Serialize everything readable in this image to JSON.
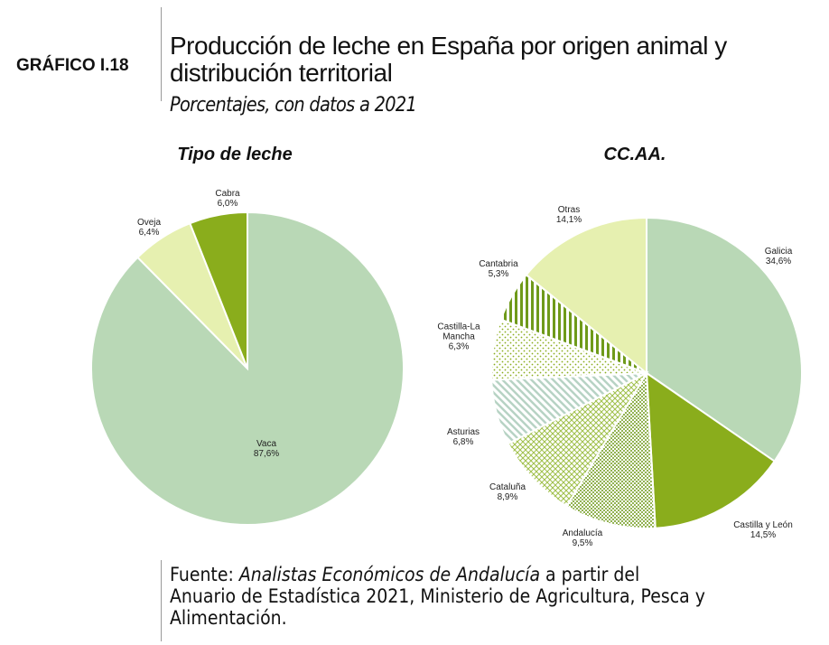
{
  "header": {
    "label": "GRÁFICO I.18",
    "title": "Producción de leche en España por origen animal y distribución territorial",
    "subtitle": "Porcentajes, con datos a 2021"
  },
  "source": {
    "lead": "Fuente:",
    "author": "Analistas Económicos de Andalucía",
    "rest": "a partir del Anuario de Estadística 2021, Ministerio de Agricultura, Pesca y Alimentación."
  },
  "chart_data": [
    {
      "type": "pie",
      "title": "Tipo de leche",
      "categories": [
        "Vaca",
        "Oveja",
        "Cabra"
      ],
      "values": [
        87.6,
        6.4,
        6.0
      ],
      "value_labels": [
        "87,6%",
        "6,4%",
        "6,0%"
      ],
      "colors": [
        "#b9d8b6",
        "#e6f0b0",
        "#8aad1c"
      ]
    },
    {
      "type": "pie",
      "title": "CC.AA.",
      "categories": [
        "Galicia",
        "Castilla y León",
        "Andalucía",
        "Cataluña",
        "Asturias",
        "Castilla-La Mancha",
        "Cantabria",
        "Otras"
      ],
      "values": [
        34.6,
        14.5,
        9.5,
        8.9,
        6.8,
        6.3,
        5.3,
        14.1
      ],
      "value_labels": [
        "34,6%",
        "14,5%",
        "9,5%",
        "8,9%",
        "6,8%",
        "6,3%",
        "5,3%",
        "14,1%"
      ],
      "colors": [
        "#b9d8b6",
        "#8aad1c",
        "url(#pat-dots-dense)",
        "url(#pat-cross)",
        "url(#pat-diag)",
        "url(#pat-dots)",
        "url(#pat-vert)",
        "#e6f0b0"
      ]
    }
  ]
}
